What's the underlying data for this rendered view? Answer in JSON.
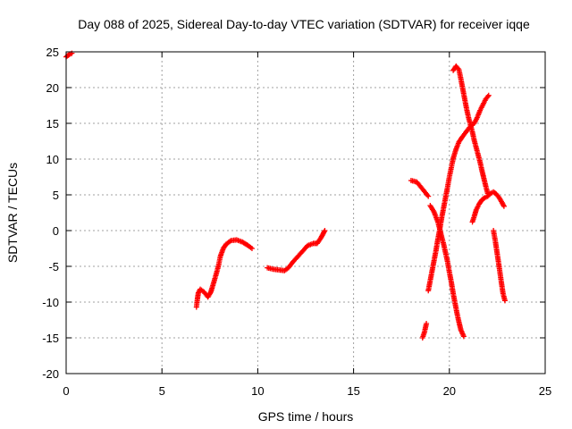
{
  "chart_data": {
    "type": "scatter",
    "title": "Day 088 of 2025, Sidereal Day-to-day VTEC variation (SDTVAR) for receiver iqqe",
    "xlabel": "GPS time / hours",
    "ylabel": "SDTVAR / TECUs",
    "xlim": [
      0,
      25
    ],
    "ylim": [
      -20,
      25
    ],
    "xticks": [
      "0",
      "5",
      "10",
      "15",
      "20",
      "25"
    ],
    "yticks": [
      "-20",
      "-15",
      "-10",
      "-5",
      "0",
      "5",
      "10",
      "15",
      "20",
      "25"
    ],
    "grid": true,
    "marker": "plus",
    "colors": {
      "points": "#ff0000",
      "grid": "#a0a0a0",
      "axes": "#000000"
    },
    "segments": [
      {
        "points": [
          [
            0.0,
            24.3
          ],
          [
            0.15,
            24.6
          ],
          [
            0.3,
            24.8
          ]
        ]
      },
      {
        "points": [
          [
            6.8,
            -10.7
          ],
          [
            6.85,
            -9.6
          ],
          [
            6.9,
            -8.7
          ],
          [
            7.0,
            -8.2
          ],
          [
            7.2,
            -8.6
          ],
          [
            7.4,
            -9.3
          ],
          [
            7.55,
            -8.6
          ],
          [
            7.7,
            -7.3
          ],
          [
            7.85,
            -5.9
          ],
          [
            7.95,
            -4.9
          ],
          [
            8.05,
            -3.6
          ],
          [
            8.2,
            -2.5
          ],
          [
            8.35,
            -1.9
          ],
          [
            8.6,
            -1.4
          ],
          [
            8.9,
            -1.3
          ],
          [
            9.2,
            -1.6
          ],
          [
            9.5,
            -2.1
          ],
          [
            9.7,
            -2.5
          ]
        ]
      },
      {
        "points": [
          [
            10.5,
            -5.2
          ],
          [
            10.8,
            -5.4
          ],
          [
            11.1,
            -5.5
          ],
          [
            11.4,
            -5.6
          ],
          [
            11.6,
            -5.2
          ],
          [
            11.8,
            -4.5
          ],
          [
            12.0,
            -3.9
          ],
          [
            12.2,
            -3.3
          ],
          [
            12.4,
            -2.7
          ],
          [
            12.6,
            -2.1
          ],
          [
            12.9,
            -1.8
          ],
          [
            13.1,
            -1.8
          ],
          [
            13.3,
            -1.0
          ],
          [
            13.5,
            0.0
          ]
        ]
      },
      {
        "points": [
          [
            18.0,
            7.0
          ],
          [
            18.3,
            6.8
          ],
          [
            18.6,
            5.8
          ],
          [
            18.9,
            4.8
          ]
        ]
      },
      {
        "points": [
          [
            18.6,
            -15.0
          ],
          [
            18.7,
            -14.2
          ],
          [
            18.8,
            -13.0
          ]
        ]
      },
      {
        "points": [
          [
            18.9,
            -8.4
          ],
          [
            19.0,
            -7.0
          ],
          [
            19.1,
            -5.6
          ],
          [
            19.2,
            -4.2
          ],
          [
            19.3,
            -2.8
          ],
          [
            19.4,
            -1.2
          ],
          [
            19.5,
            0.2
          ],
          [
            19.6,
            1.8
          ],
          [
            19.7,
            3.2
          ],
          [
            19.8,
            4.6
          ],
          [
            19.9,
            6.0
          ],
          [
            20.0,
            7.5
          ],
          [
            20.1,
            8.8
          ],
          [
            20.2,
            10.1
          ],
          [
            20.35,
            11.4
          ],
          [
            20.5,
            12.4
          ],
          [
            20.7,
            13.2
          ],
          [
            20.9,
            13.9
          ],
          [
            21.1,
            14.6
          ],
          [
            21.3,
            15.0
          ],
          [
            21.45,
            15.8
          ],
          [
            21.6,
            16.8
          ],
          [
            21.75,
            17.6
          ],
          [
            21.9,
            18.4
          ],
          [
            22.05,
            18.9
          ]
        ]
      },
      {
        "points": [
          [
            19.0,
            3.5
          ],
          [
            19.2,
            2.6
          ],
          [
            19.4,
            1.2
          ],
          [
            19.5,
            0.2
          ],
          [
            19.6,
            -0.9
          ],
          [
            19.7,
            -1.9
          ],
          [
            19.8,
            -3.1
          ],
          [
            19.9,
            -4.3
          ],
          [
            20.0,
            -5.8
          ],
          [
            20.1,
            -7.2
          ],
          [
            20.2,
            -8.8
          ],
          [
            20.3,
            -10.2
          ],
          [
            20.4,
            -11.6
          ],
          [
            20.5,
            -12.8
          ],
          [
            20.6,
            -13.9
          ],
          [
            20.75,
            -14.8
          ]
        ]
      },
      {
        "points": [
          [
            20.2,
            22.4
          ],
          [
            20.35,
            23.0
          ],
          [
            20.5,
            22.5
          ],
          [
            20.6,
            21.2
          ],
          [
            20.7,
            19.8
          ],
          [
            20.8,
            18.4
          ],
          [
            20.9,
            17.0
          ],
          [
            21.0,
            15.8
          ],
          [
            21.1,
            14.8
          ],
          [
            21.2,
            13.8
          ],
          [
            21.3,
            12.6
          ],
          [
            21.4,
            11.6
          ],
          [
            21.5,
            10.6
          ],
          [
            21.6,
            9.6
          ],
          [
            21.7,
            8.4
          ],
          [
            21.8,
            7.3
          ],
          [
            21.9,
            6.2
          ],
          [
            22.0,
            5.2
          ]
        ]
      },
      {
        "points": [
          [
            21.2,
            1.2
          ],
          [
            21.3,
            2.0
          ],
          [
            21.4,
            2.9
          ],
          [
            21.55,
            3.7
          ],
          [
            21.7,
            4.3
          ],
          [
            21.85,
            4.6
          ],
          [
            22.0,
            4.8
          ],
          [
            22.15,
            5.2
          ],
          [
            22.3,
            5.4
          ],
          [
            22.45,
            5.1
          ],
          [
            22.6,
            4.6
          ],
          [
            22.75,
            3.9
          ],
          [
            22.85,
            3.4
          ]
        ]
      },
      {
        "points": [
          [
            22.3,
            0.0
          ],
          [
            22.4,
            -1.5
          ],
          [
            22.5,
            -3.3
          ],
          [
            22.6,
            -5.1
          ],
          [
            22.7,
            -7.0
          ],
          [
            22.8,
            -8.8
          ],
          [
            22.9,
            -9.8
          ]
        ]
      }
    ]
  }
}
